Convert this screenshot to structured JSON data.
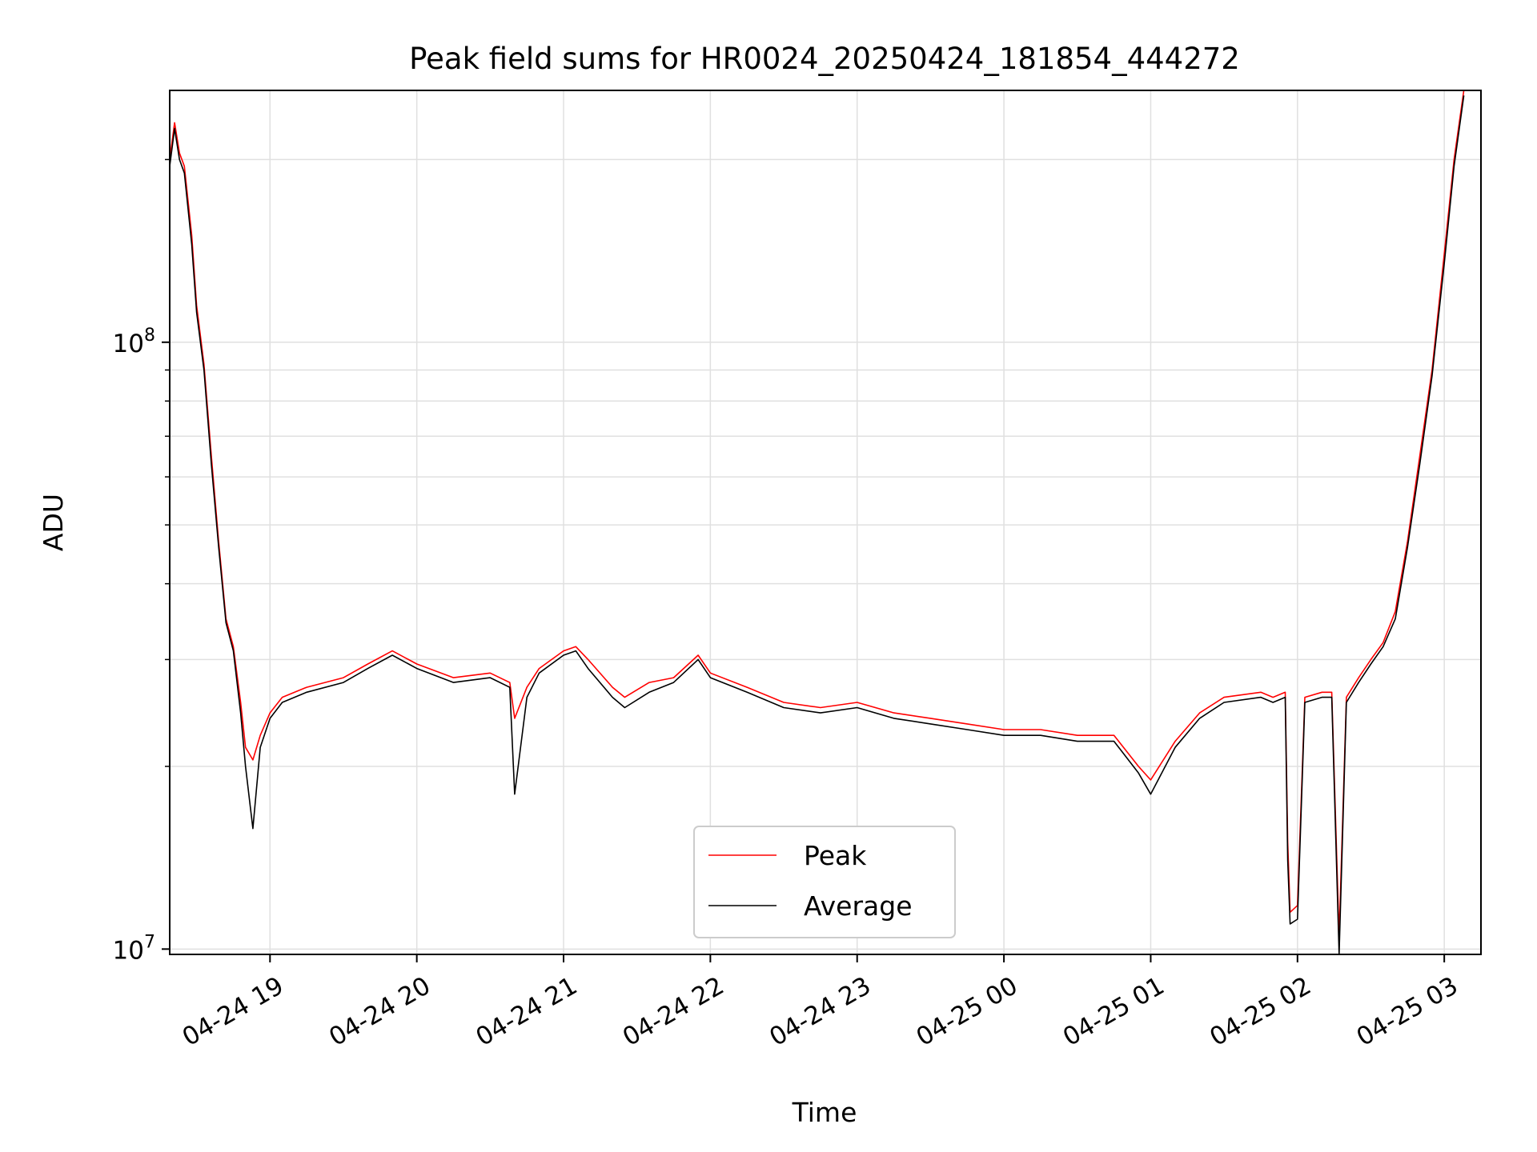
{
  "chart_data": {
    "type": "line",
    "title": "Peak field sums for HR0024_20250424_181854_444272",
    "xlabel": "Time",
    "ylabel": "ADU",
    "yscale": "log",
    "ylim": [
      9800000.0,
      260000000.0
    ],
    "xlim": [
      "2025-04-24 18:19",
      "2025-04-25 03:15"
    ],
    "grid": true,
    "legend_position": "lower center",
    "x_ticks": [
      "2025-04-24 19:00",
      "2025-04-24 20:00",
      "2025-04-24 21:00",
      "2025-04-24 22:00",
      "2025-04-24 23:00",
      "2025-04-25 00:00",
      "2025-04-25 01:00",
      "2025-04-25 02:00",
      "2025-04-25 03:00"
    ],
    "x_tick_labels": [
      "04-24 19",
      "04-24 20",
      "04-24 21",
      "04-24 22",
      "04-24 23",
      "04-25 00",
      "04-25 01",
      "04-25 02",
      "04-25 03"
    ],
    "y_tick_labels": [
      {
        "value": 10000000.0,
        "base": "10",
        "exp": "7"
      },
      {
        "value": 100000000.0,
        "base": "10",
        "exp": "8"
      }
    ],
    "series": [
      {
        "name": "Peak",
        "color": "#ff0000",
        "x": [
          "2025-04-24 18:19",
          "2025-04-24 18:21",
          "2025-04-24 18:23",
          "2025-04-24 18:25",
          "2025-04-24 18:28",
          "2025-04-24 18:30",
          "2025-04-24 18:33",
          "2025-04-24 18:36",
          "2025-04-24 18:39",
          "2025-04-24 18:42",
          "2025-04-24 18:45",
          "2025-04-24 18:48",
          "2025-04-24 18:50",
          "2025-04-24 18:53",
          "2025-04-24 18:56",
          "2025-04-24 19:00",
          "2025-04-24 19:05",
          "2025-04-24 19:15",
          "2025-04-24 19:30",
          "2025-04-24 19:40",
          "2025-04-24 19:50",
          "2025-04-24 20:00",
          "2025-04-24 20:15",
          "2025-04-24 20:30",
          "2025-04-24 20:38",
          "2025-04-24 20:40",
          "2025-04-24 20:45",
          "2025-04-24 20:50",
          "2025-04-24 21:00",
          "2025-04-24 21:05",
          "2025-04-24 21:10",
          "2025-04-24 21:20",
          "2025-04-24 21:25",
          "2025-04-24 21:35",
          "2025-04-24 21:45",
          "2025-04-24 21:55",
          "2025-04-24 22:00",
          "2025-04-24 22:15",
          "2025-04-24 22:30",
          "2025-04-24 22:45",
          "2025-04-24 23:00",
          "2025-04-24 23:15",
          "2025-04-24 23:30",
          "2025-04-24 23:45",
          "2025-04-25 00:00",
          "2025-04-25 00:15",
          "2025-04-25 00:30",
          "2025-04-25 00:45",
          "2025-04-25 00:55",
          "2025-04-25 01:00",
          "2025-04-25 01:10",
          "2025-04-25 01:20",
          "2025-04-25 01:30",
          "2025-04-25 01:45",
          "2025-04-25 01:50",
          "2025-04-25 01:55",
          "2025-04-25 01:56",
          "2025-04-25 01:57",
          "2025-04-25 02:00",
          "2025-04-25 02:03",
          "2025-04-25 02:10",
          "2025-04-25 02:14",
          "2025-04-25 02:17",
          "2025-04-25 02:20",
          "2025-04-25 02:25",
          "2025-04-25 02:30",
          "2025-04-25 02:35",
          "2025-04-25 02:40",
          "2025-04-25 02:45",
          "2025-04-25 02:50",
          "2025-04-25 02:55",
          "2025-04-25 03:00",
          "2025-04-25 03:04",
          "2025-04-25 03:08"
        ],
        "y": [
          200000000,
          230000000,
          205000000,
          195000000,
          150000000,
          115000000,
          92000000,
          65000000,
          47000000,
          35000000,
          31500000,
          25500000,
          21500000,
          20500000,
          22500000,
          24500000,
          26000000,
          27000000,
          28000000,
          29500000,
          31000000,
          29500000,
          28000000,
          28500000,
          27500000,
          24000000,
          27000000,
          29000000,
          31000000,
          31500000,
          30000000,
          27000000,
          26000000,
          27500000,
          28000000,
          30500000,
          28500000,
          27000000,
          25500000,
          25000000,
          25500000,
          24500000,
          24000000,
          23500000,
          23000000,
          23000000,
          22500000,
          22500000,
          20000000,
          19000000,
          22000000,
          24500000,
          26000000,
          26500000,
          26000000,
          26500000,
          15000000,
          11500000,
          11800000,
          26000000,
          26500000,
          26500000,
          10500000,
          26000000,
          28000000,
          30000000,
          32000000,
          36000000,
          47000000,
          65000000,
          90000000,
          140000000,
          200000000,
          260000000
        ]
      },
      {
        "name": "Average",
        "color": "#000000",
        "x": [
          "2025-04-24 18:19",
          "2025-04-24 18:21",
          "2025-04-24 18:23",
          "2025-04-24 18:25",
          "2025-04-24 18:28",
          "2025-04-24 18:30",
          "2025-04-24 18:33",
          "2025-04-24 18:36",
          "2025-04-24 18:39",
          "2025-04-24 18:42",
          "2025-04-24 18:45",
          "2025-04-24 18:48",
          "2025-04-24 18:50",
          "2025-04-24 18:53",
          "2025-04-24 18:56",
          "2025-04-24 19:00",
          "2025-04-24 19:05",
          "2025-04-24 19:15",
          "2025-04-24 19:30",
          "2025-04-24 19:40",
          "2025-04-24 19:50",
          "2025-04-24 20:00",
          "2025-04-24 20:15",
          "2025-04-24 20:30",
          "2025-04-24 20:38",
          "2025-04-24 20:40",
          "2025-04-24 20:45",
          "2025-04-24 20:50",
          "2025-04-24 21:00",
          "2025-04-24 21:05",
          "2025-04-24 21:10",
          "2025-04-24 21:20",
          "2025-04-24 21:25",
          "2025-04-24 21:35",
          "2025-04-24 21:45",
          "2025-04-24 21:55",
          "2025-04-24 22:00",
          "2025-04-24 22:15",
          "2025-04-24 22:30",
          "2025-04-24 22:45",
          "2025-04-24 23:00",
          "2025-04-24 23:15",
          "2025-04-24 23:30",
          "2025-04-24 23:45",
          "2025-04-25 00:00",
          "2025-04-25 00:15",
          "2025-04-25 00:30",
          "2025-04-25 00:45",
          "2025-04-25 00:55",
          "2025-04-25 01:00",
          "2025-04-25 01:10",
          "2025-04-25 01:20",
          "2025-04-25 01:30",
          "2025-04-25 01:45",
          "2025-04-25 01:50",
          "2025-04-25 01:55",
          "2025-04-25 01:56",
          "2025-04-25 01:57",
          "2025-04-25 02:00",
          "2025-04-25 02:03",
          "2025-04-25 02:10",
          "2025-04-25 02:14",
          "2025-04-25 02:17",
          "2025-04-25 02:20",
          "2025-04-25 02:25",
          "2025-04-25 02:30",
          "2025-04-25 02:35",
          "2025-04-25 02:40",
          "2025-04-25 02:45",
          "2025-04-25 02:50",
          "2025-04-25 02:55",
          "2025-04-25 03:00",
          "2025-04-25 03:04",
          "2025-04-25 03:08"
        ],
        "y": [
          195000000,
          225000000,
          200000000,
          190000000,
          145000000,
          112000000,
          90000000,
          63000000,
          46000000,
          34500000,
          31000000,
          24500000,
          20000000,
          15800000,
          21500000,
          24000000,
          25500000,
          26500000,
          27500000,
          29000000,
          30500000,
          29000000,
          27500000,
          28000000,
          27000000,
          18000000,
          26000000,
          28500000,
          30500000,
          31000000,
          29000000,
          26000000,
          25000000,
          26500000,
          27500000,
          30000000,
          28000000,
          26500000,
          25000000,
          24500000,
          25000000,
          24000000,
          23500000,
          23000000,
          22500000,
          22500000,
          22000000,
          22000000,
          19500000,
          18000000,
          21500000,
          24000000,
          25500000,
          26000000,
          25500000,
          26000000,
          14000000,
          11000000,
          11200000,
          25500000,
          26000000,
          26000000,
          9800000,
          25500000,
          27500000,
          29500000,
          31500000,
          35000000,
          46000000,
          63000000,
          88000000,
          135000000,
          195000000,
          255000000
        ]
      }
    ]
  }
}
